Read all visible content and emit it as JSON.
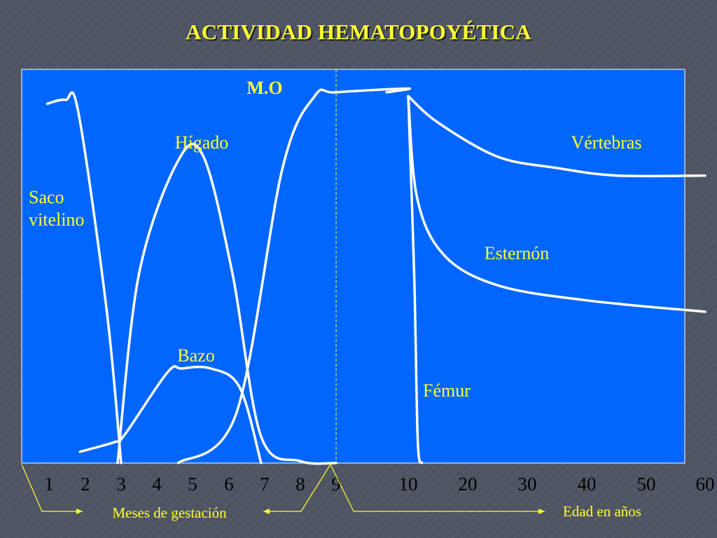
{
  "slide": {
    "title": "ACTIVIDAD HEMATOPOYÉTICA"
  },
  "colors": {
    "background": "#4f5563",
    "plot_area": "#0066ff",
    "text": "#ffff33",
    "curves": "#ffffff",
    "divider": "#ffff33"
  },
  "chart_data": {
    "type": "line",
    "title": "ACTIVIDAD HEMATOPOYÉTICA",
    "yaxis": "unlabeled relative activity (0-100)",
    "x_tick_labels": [
      "1",
      "2",
      "3",
      "4",
      "5",
      "6",
      "7",
      "8",
      "9",
      "10",
      "20",
      "30",
      "40",
      "50",
      "60"
    ],
    "x_group_labels": {
      "gestation": "Meses de gestación",
      "age": "Edad en años"
    },
    "divider_at": "9",
    "grid": false,
    "legend": "none; series labeled directly on chart",
    "series": [
      {
        "name": "Saco vitelino",
        "points": [
          [
            "0.95",
            95
          ],
          [
            "1.45",
            96
          ],
          [
            "1.8",
            93
          ],
          [
            "2.6",
            40
          ],
          [
            "3.0",
            0
          ]
        ]
      },
      {
        "name": "Hígado",
        "points": [
          [
            "2.9",
            0
          ],
          [
            "3.5",
            50
          ],
          [
            "4.6",
            80
          ],
          [
            "5.3",
            81
          ],
          [
            "6.1",
            50
          ],
          [
            "6.9",
            7
          ],
          [
            "8",
            0.5
          ],
          [
            "9",
            0
          ]
        ]
      },
      {
        "name": "Bazo",
        "points": [
          [
            "1.85",
            3
          ],
          [
            "2.8",
            5.5
          ],
          [
            "3.1",
            7.5
          ],
          [
            "4.3",
            24
          ],
          [
            "4.7",
            25
          ],
          [
            "5.5",
            25
          ],
          [
            "6.3",
            20
          ],
          [
            "6.9",
            0
          ]
        ]
      },
      {
        "name": "M.O",
        "points": [
          [
            "4.6",
            0
          ],
          [
            "6.2",
            13
          ],
          [
            "7.5",
            78
          ],
          [
            "8.4",
            97
          ],
          [
            "9",
            98
          ],
          [
            "10",
            99
          ],
          [
            "9.7",
            98
          ]
        ]
      },
      {
        "name": "Vértebras",
        "points": [
          [
            "10",
            97
          ],
          [
            "15",
            90
          ],
          [
            "25",
            81
          ],
          [
            "35",
            78
          ],
          [
            "45",
            76
          ],
          [
            "60",
            76
          ]
        ]
      },
      {
        "name": "Esternón",
        "points": [
          [
            "10",
            97
          ],
          [
            "11.5",
            70
          ],
          [
            "16",
            55
          ],
          [
            "25",
            47
          ],
          [
            "40",
            43
          ],
          [
            "60",
            40
          ]
        ]
      },
      {
        "name": "Fémur",
        "points": [
          [
            "10",
            97
          ],
          [
            "11",
            50
          ],
          [
            "11.6",
            6
          ],
          [
            "12.3",
            0
          ]
        ]
      }
    ],
    "annotations": [
      {
        "series": "M.O",
        "label": "M.O"
      },
      {
        "series": "Hígado",
        "label": "Hígado"
      },
      {
        "series": "Vértebras",
        "label": "Vértebras"
      },
      {
        "series": "Saco vitelino",
        "label": "Saco\nvitelino"
      },
      {
        "series": "Esternón",
        "label": "Esternón"
      },
      {
        "series": "Bazo",
        "label": "Bazo"
      },
      {
        "series": "Fémur",
        "label": "Fémur"
      }
    ]
  }
}
